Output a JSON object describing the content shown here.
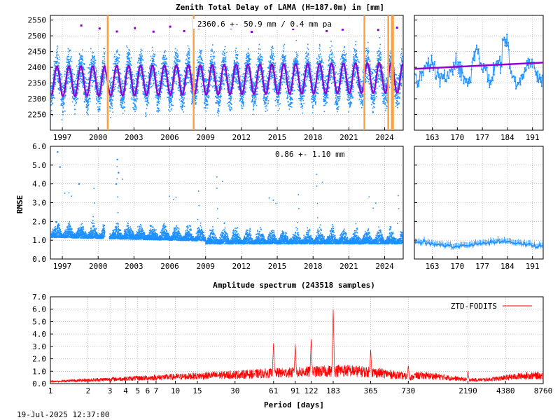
{
  "timestamp": "19-Jul-2025 12:37:00",
  "colors": {
    "data": "#1e90ff",
    "fit": "#9400d3",
    "trend": "#9400d3",
    "event": "#ffa040",
    "spectrum": "#ff0000"
  },
  "chart_data": [
    {
      "id": "ztd",
      "type": "scatter",
      "title": "Zenith Total Delay of LAMA (H=187.0m) in [mm]",
      "annotation": "2360.6 +-  50.9 mm /  0.4 mm pa",
      "xlim": [
        1996.0,
        2025.55
      ],
      "ylim": [
        2200,
        2565
      ],
      "xticks": [
        1997,
        2000,
        2003,
        2006,
        2009,
        2012,
        2015,
        2018,
        2021,
        2024
      ],
      "yticks": [
        2250,
        2300,
        2350,
        2400,
        2450,
        2500,
        2550
      ],
      "mean": 2360.6,
      "seasonal_amplitude": 50,
      "trend_per_year": 0.4,
      "series": [
        {
          "values_note": "",
          "model": "annual sinusoid"
        }
      ],
      "event_lines_years": [
        2000.8,
        2008.0,
        2022.3,
        2024.3,
        2024.6,
        2024.7
      ]
    },
    {
      "id": "ztd-zoom",
      "type": "scatter",
      "xlim": [
        158,
        194
      ],
      "ylim": [
        2200,
        2565
      ],
      "xticks": [
        163,
        170,
        177,
        184,
        191
      ],
      "trend_start": 2395,
      "trend_end": 2415
    },
    {
      "id": "rmse",
      "type": "scatter",
      "ylabel": "RMSE",
      "annotation": "0.86 +-  1.10 mm",
      "xlim": [
        1996.0,
        2025.55
      ],
      "ylim": [
        0.0,
        6.0
      ],
      "xticks": [
        1997,
        2000,
        2003,
        2006,
        2009,
        2012,
        2015,
        2018,
        2021,
        2024
      ],
      "yticks": [
        "0.0",
        "1.0",
        "2.0",
        "3.0",
        "4.0",
        "5.0",
        "6.0"
      ],
      "mean": 0.86
    },
    {
      "id": "rmse-zoom",
      "type": "scatter",
      "xlim": [
        158,
        194
      ],
      "ylim": [
        0.0,
        6.0
      ],
      "xticks": [
        163,
        170,
        177,
        184,
        191
      ],
      "mean": 0.8
    },
    {
      "id": "spectrum",
      "type": "line",
      "title": "Amplitude spectrum (243518 samples)",
      "xlabel": "Period [days]",
      "legend": "ZTD-FODITS",
      "legend_position": "top-right",
      "x_scale": "log",
      "xlim": [
        1,
        8760
      ],
      "ylim": [
        0.0,
        7.0
      ],
      "xticks": [
        1,
        2,
        3,
        4,
        5,
        6,
        7,
        10,
        15,
        30,
        61,
        91,
        122,
        183,
        365,
        730,
        2190,
        4380,
        8760
      ],
      "yticks": [
        "0.0",
        "1.0",
        "2.0",
        "3.0",
        "4.0",
        "5.0",
        "6.0",
        "7.0"
      ],
      "peaks": [
        {
          "period": 183,
          "amplitude": 6.0
        },
        {
          "period": 122,
          "amplitude": 3.6
        },
        {
          "period": 91,
          "amplitude": 3.2
        },
        {
          "period": 61,
          "amplitude": 3.4
        },
        {
          "period": 365,
          "amplitude": 2.8
        },
        {
          "period": 730,
          "amplitude": 1.5
        },
        {
          "period": 2190,
          "amplitude": 1.0
        }
      ]
    }
  ]
}
